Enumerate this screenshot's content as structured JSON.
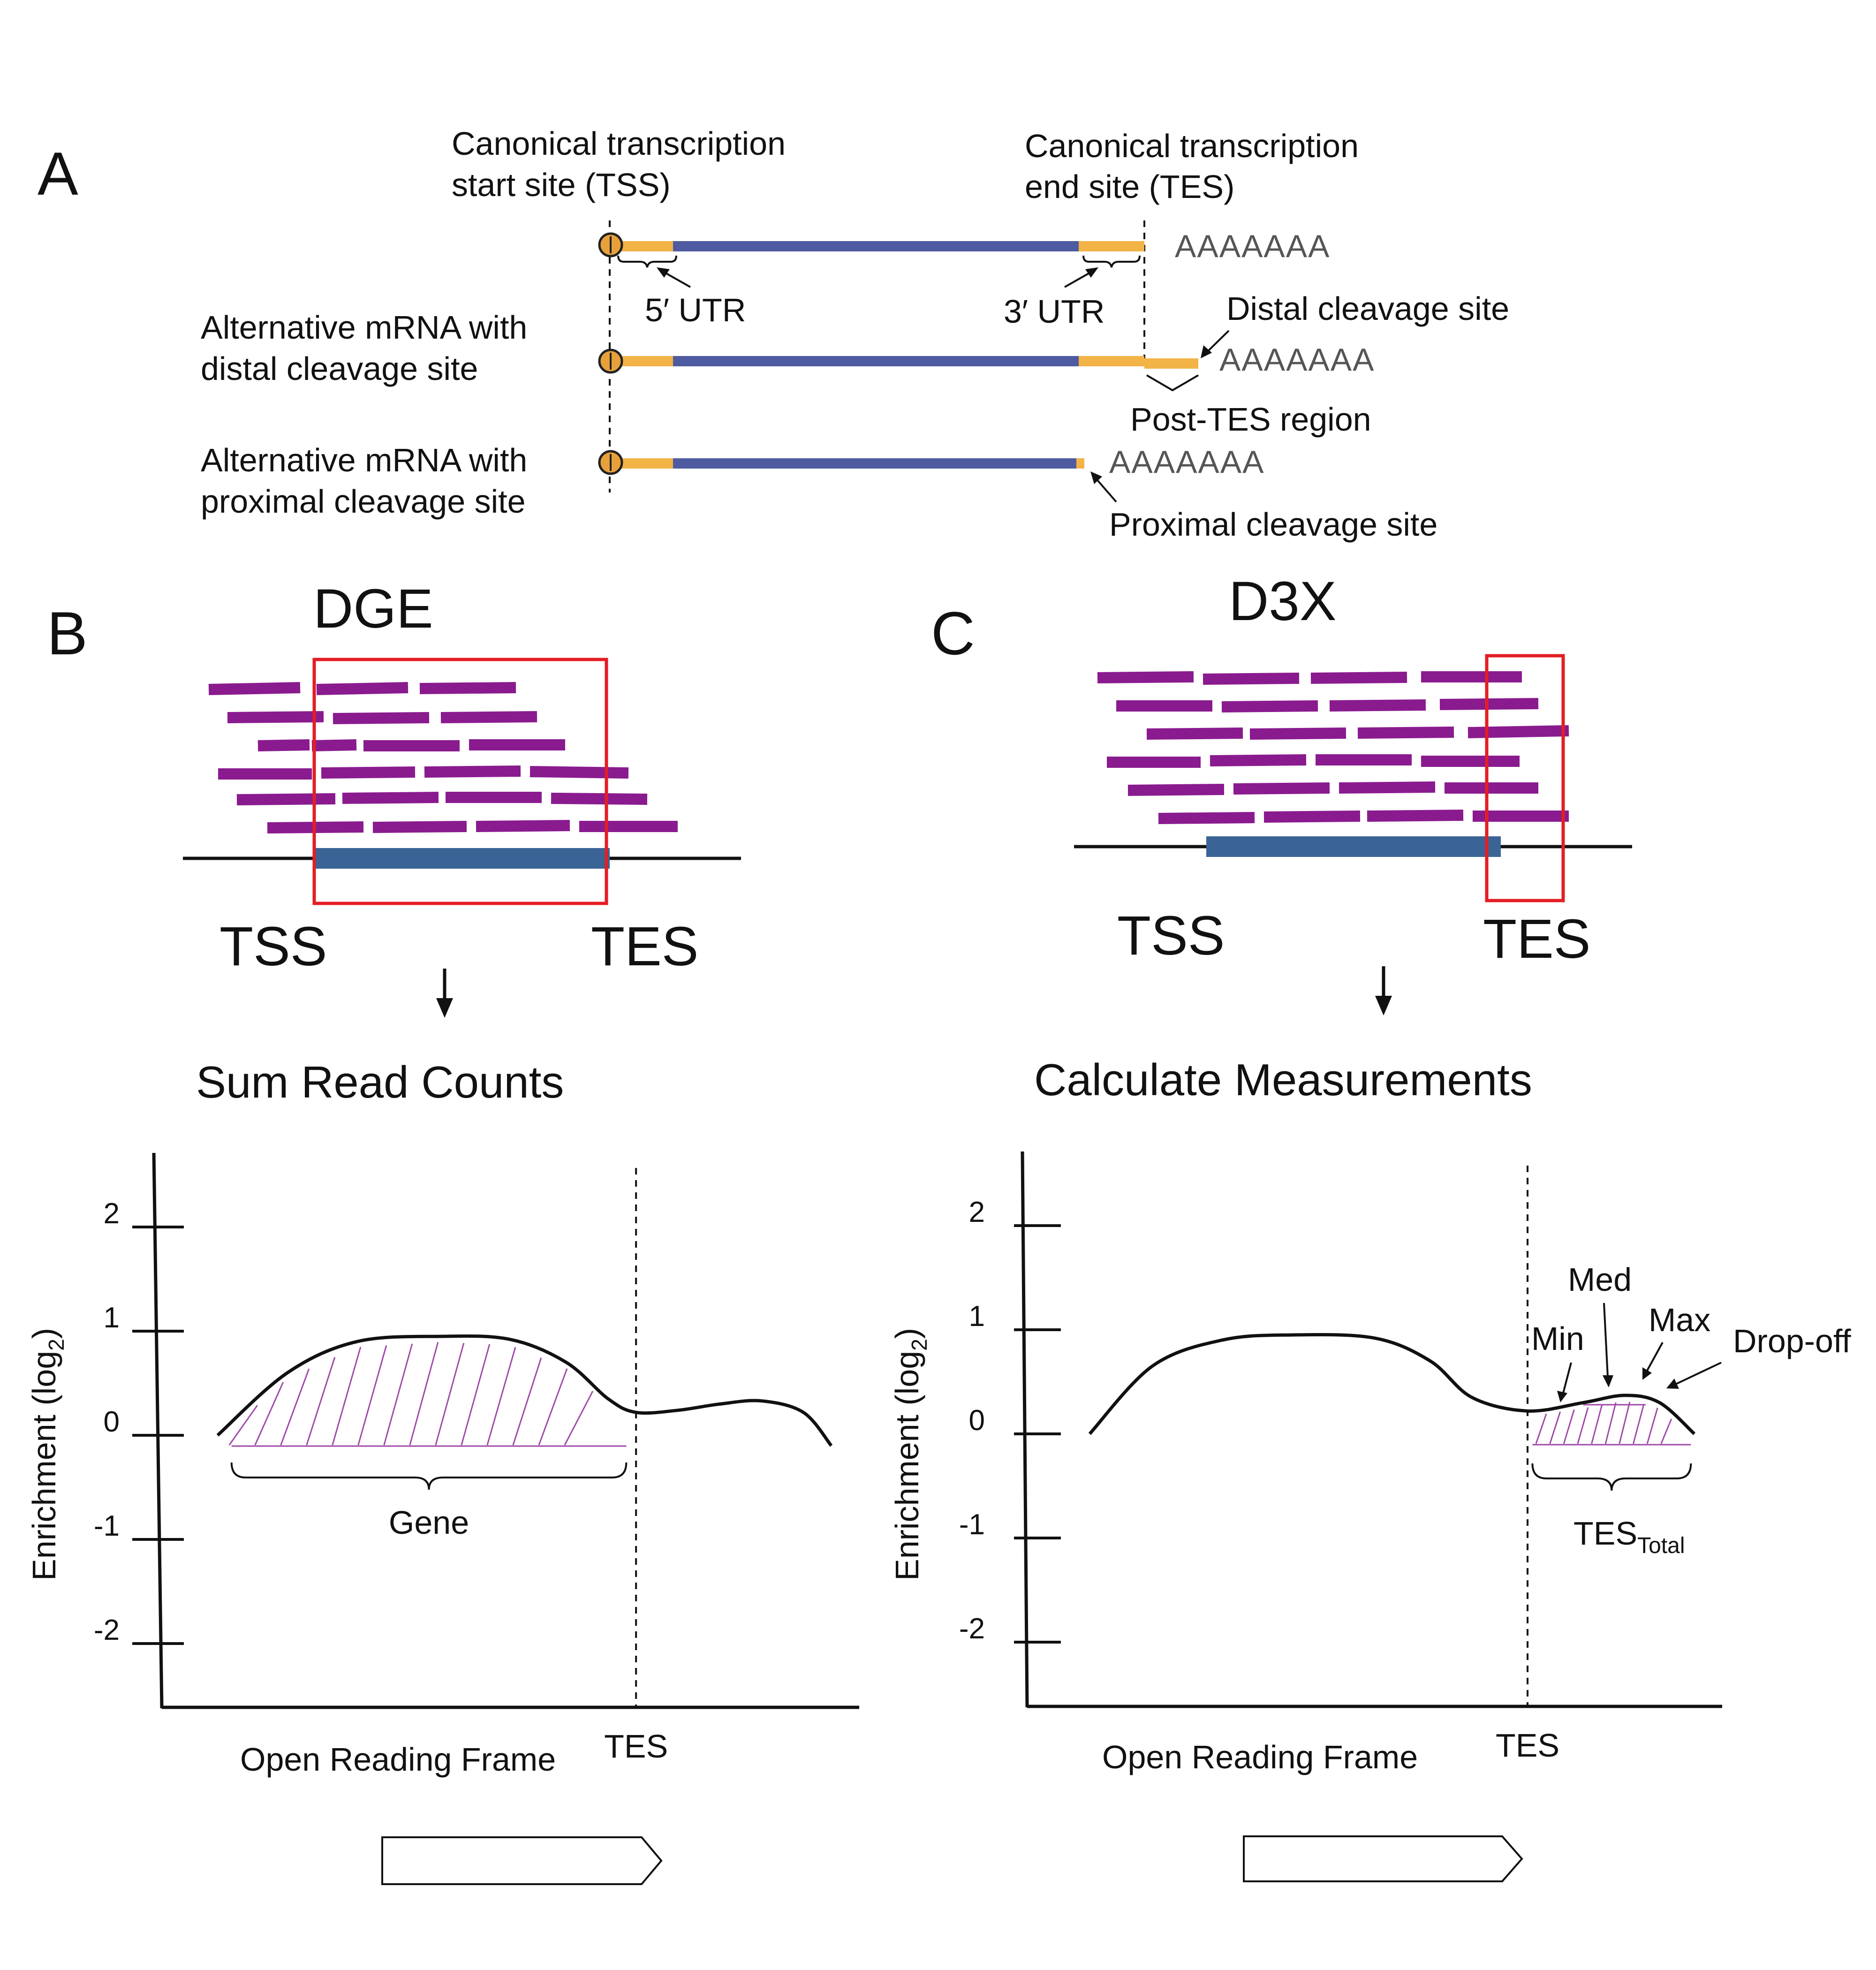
{
  "colors": {
    "utr": "#F2B347",
    "cds": "#4E5BA0",
    "tss_circle": "#E8A13A",
    "read": "#8A1B8F",
    "gene_bar": "#3A6496",
    "box": "#E31E24",
    "hatch": "#A04AA8"
  },
  "panel_a": {
    "label": "A",
    "tss_label_line1": "Canonical transcription",
    "tss_label_line2": "start site (TSS)",
    "tes_label_line1": "Canonical transcription",
    "tes_label_line2": "end site (TES)",
    "polya": "AAAAAAA",
    "utr5": "5′ UTR",
    "utr3": "3′ UTR",
    "distal_site": "Distal cleavage site",
    "distal_mrna_line1": "Alternative mRNA with",
    "distal_mrna_line2": "distal cleavage site",
    "post_tes": "Post-TES region",
    "proximal_mrna_line1": "Alternative mRNA with",
    "proximal_mrna_line2": "proximal cleavage site",
    "proximal_site": "Proximal cleavage site"
  },
  "panel_b": {
    "label": "B",
    "title": "DGE",
    "tss": "TSS",
    "tes": "TES",
    "step": "Sum Read Counts",
    "y_title": "Enrichment (log",
    "y_sub": "2",
    "y_title_end": ")",
    "x_title": "Open Reading Frame",
    "x_tes": "TES",
    "region": "Gene"
  },
  "panel_c": {
    "label": "C",
    "title": "D3X",
    "tss": "TSS",
    "tes": "TES",
    "step": "Calculate Measurements",
    "y_title": "Enrichment (log",
    "y_sub": "2",
    "y_title_end": ")",
    "x_title": "Open Reading Frame",
    "x_tes": "TES",
    "min": "Min",
    "med": "Med",
    "max": "Max",
    "dropoff": "Drop-off",
    "region": "TES",
    "region_sub": "Total"
  },
  "chart_data": [
    {
      "type": "line",
      "y_ticks": [
        "2",
        "1",
        "0",
        "-1",
        "-2"
      ],
      "ylim": [
        -2.7,
        2.7
      ],
      "x_range": [
        0,
        1
      ],
      "tes_x": 0.68,
      "x": [
        0.08,
        0.18,
        0.28,
        0.4,
        0.5,
        0.58,
        0.64,
        0.68,
        0.74,
        0.8,
        0.86,
        0.92,
        0.96
      ],
      "y": [
        0.0,
        0.6,
        0.9,
        0.95,
        0.92,
        0.7,
        0.35,
        0.22,
        0.24,
        0.3,
        0.33,
        0.22,
        -0.1
      ]
    },
    {
      "type": "line",
      "y_ticks": [
        "2",
        "1",
        "0",
        "-1",
        "-2"
      ],
      "ylim": [
        -2.7,
        2.7
      ],
      "x_range": [
        0,
        1
      ],
      "tes_x": 0.72,
      "x": [
        0.09,
        0.18,
        0.28,
        0.38,
        0.5,
        0.58,
        0.64,
        0.72,
        0.8,
        0.86,
        0.91,
        0.96
      ],
      "y": [
        0.0,
        0.65,
        0.9,
        0.95,
        0.92,
        0.7,
        0.35,
        0.22,
        0.3,
        0.37,
        0.3,
        0.0
      ]
    }
  ]
}
